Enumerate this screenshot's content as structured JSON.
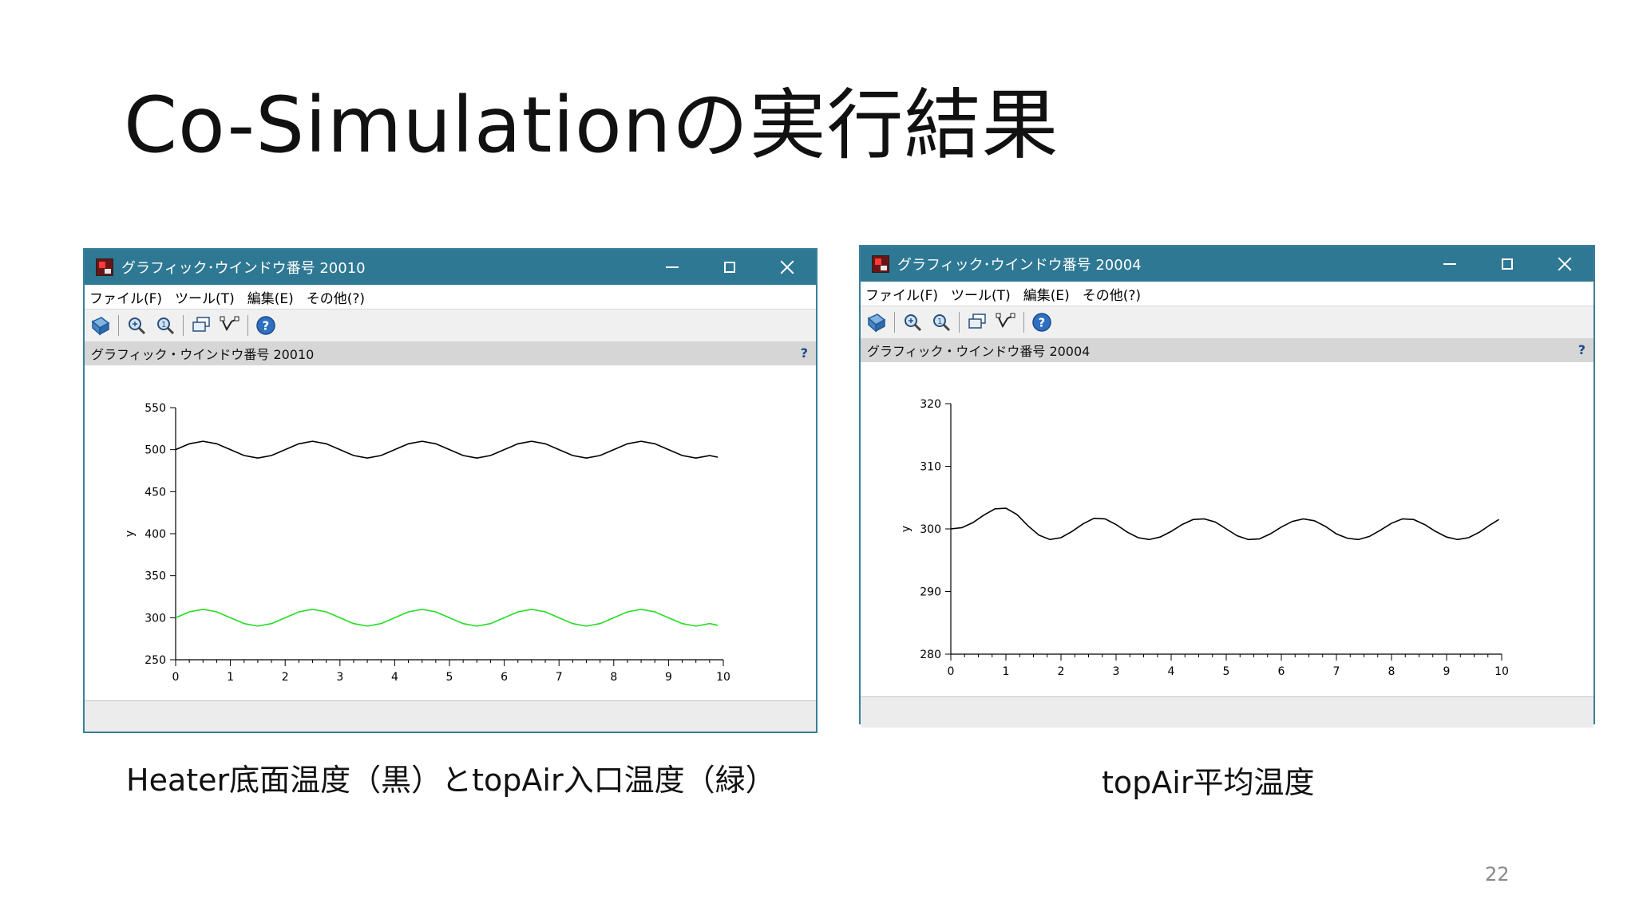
{
  "slide": {
    "title": "Co-Simulationの実行結果",
    "page_number": "22"
  },
  "windows": [
    {
      "title": "グラフィック･ウインドウ番号 20010",
      "menu": [
        "ファイル(F)",
        "ツール(T)",
        "編集(E)",
        "その他(?)"
      ],
      "toolbar_icons": [
        "rotate-icon",
        "zoom-icon",
        "unzoom-icon",
        "select-icon",
        "datatip-icon",
        "help-icon"
      ],
      "info_text": "グラフィック・ウインドウ番号 20010",
      "help_label": "?",
      "caption": "Heater底面温度（黒）とtopAir入口温度（緑）"
    },
    {
      "title": "グラフィック･ウインドウ番号 20004",
      "menu": [
        "ファイル(F)",
        "ツール(T)",
        "編集(E)",
        "その他(?)"
      ],
      "toolbar_icons": [
        "rotate-icon",
        "zoom-icon",
        "unzoom-icon",
        "select-icon",
        "datatip-icon",
        "help-icon"
      ],
      "info_text": "グラフィック・ウインドウ番号 20004",
      "help_label": "?",
      "caption": "topAir平均温度"
    }
  ],
  "chart_data": [
    {
      "type": "line",
      "title": "",
      "xlabel": "",
      "ylabel": "y",
      "xlim": [
        0,
        10
      ],
      "ylim": [
        250,
        550
      ],
      "xticks": [
        "0",
        "1",
        "2",
        "3",
        "4",
        "5",
        "6",
        "7",
        "8",
        "9",
        "10"
      ],
      "yticks": [
        "250",
        "300",
        "350",
        "400",
        "450",
        "500",
        "550"
      ],
      "series": [
        {
          "color": "#000000",
          "x": [
            0,
            0.25,
            0.5,
            0.75,
            1.0,
            1.25,
            1.5,
            1.75,
            2.0,
            2.25,
            2.5,
            2.75,
            3.0,
            3.25,
            3.5,
            3.75,
            4.0,
            4.25,
            4.5,
            4.75,
            5.0,
            5.25,
            5.5,
            5.75,
            6.0,
            6.25,
            6.5,
            6.75,
            7.0,
            7.25,
            7.5,
            7.75,
            8.0,
            8.25,
            8.5,
            8.75,
            9.0,
            9.25,
            9.5,
            9.75,
            9.9
          ],
          "y": [
            500,
            507,
            510,
            507,
            500,
            493,
            490,
            493,
            500,
            507,
            510,
            507,
            500,
            493,
            490,
            493,
            500,
            507,
            510,
            507,
            500,
            493,
            490,
            493,
            500,
            507,
            510,
            507,
            500,
            493,
            490,
            493,
            500,
            507,
            510,
            507,
            500,
            493,
            490,
            493,
            491
          ]
        },
        {
          "color": "#22dd22",
          "x": [
            0,
            0.25,
            0.5,
            0.75,
            1.0,
            1.25,
            1.5,
            1.75,
            2.0,
            2.25,
            2.5,
            2.75,
            3.0,
            3.25,
            3.5,
            3.75,
            4.0,
            4.25,
            4.5,
            4.75,
            5.0,
            5.25,
            5.5,
            5.75,
            6.0,
            6.25,
            6.5,
            6.75,
            7.0,
            7.25,
            7.5,
            7.75,
            8.0,
            8.25,
            8.5,
            8.75,
            9.0,
            9.25,
            9.5,
            9.75,
            9.9
          ],
          "y": [
            300,
            307,
            310,
            307,
            300,
            293,
            290,
            293,
            300,
            307,
            310,
            307,
            300,
            293,
            290,
            293,
            300,
            307,
            310,
            307,
            300,
            293,
            290,
            293,
            300,
            307,
            310,
            307,
            300,
            293,
            290,
            293,
            300,
            307,
            310,
            307,
            300,
            293,
            290,
            293,
            291
          ]
        }
      ]
    },
    {
      "type": "line",
      "title": "",
      "xlabel": "",
      "ylabel": "y",
      "xlim": [
        0,
        10
      ],
      "ylim": [
        280,
        320
      ],
      "xticks": [
        "0",
        "1",
        "2",
        "3",
        "4",
        "5",
        "6",
        "7",
        "8",
        "9",
        "10"
      ],
      "yticks": [
        "280",
        "290",
        "300",
        "310",
        "320"
      ],
      "series": [
        {
          "color": "#000000",
          "x": [
            0,
            0.2,
            0.4,
            0.6,
            0.8,
            1.0,
            1.2,
            1.4,
            1.6,
            1.8,
            2.0,
            2.2,
            2.4,
            2.6,
            2.8,
            3.0,
            3.2,
            3.4,
            3.6,
            3.8,
            4.0,
            4.2,
            4.4,
            4.6,
            4.8,
            5.0,
            5.2,
            5.4,
            5.6,
            5.8,
            6.0,
            6.2,
            6.4,
            6.6,
            6.8,
            7.0,
            7.2,
            7.4,
            7.6,
            7.8,
            8.0,
            8.2,
            8.4,
            8.6,
            8.8,
            9.0,
            9.2,
            9.4,
            9.6,
            9.8,
            9.95
          ],
          "y": [
            300,
            300.2,
            301,
            302.2,
            303.2,
            303.3,
            302.3,
            300.5,
            299,
            298.3,
            298.6,
            299.6,
            300.8,
            301.7,
            301.6,
            300.7,
            299.5,
            298.6,
            298.3,
            298.7,
            299.6,
            300.7,
            301.5,
            301.6,
            301.1,
            300,
            298.9,
            298.3,
            298.4,
            299.2,
            300.3,
            301.2,
            301.6,
            301.3,
            300.4,
            299.2,
            298.5,
            298.3,
            298.8,
            299.8,
            300.9,
            301.6,
            301.5,
            300.7,
            299.6,
            298.7,
            298.3,
            298.6,
            299.5,
            300.7,
            301.5
          ]
        }
      ]
    }
  ]
}
